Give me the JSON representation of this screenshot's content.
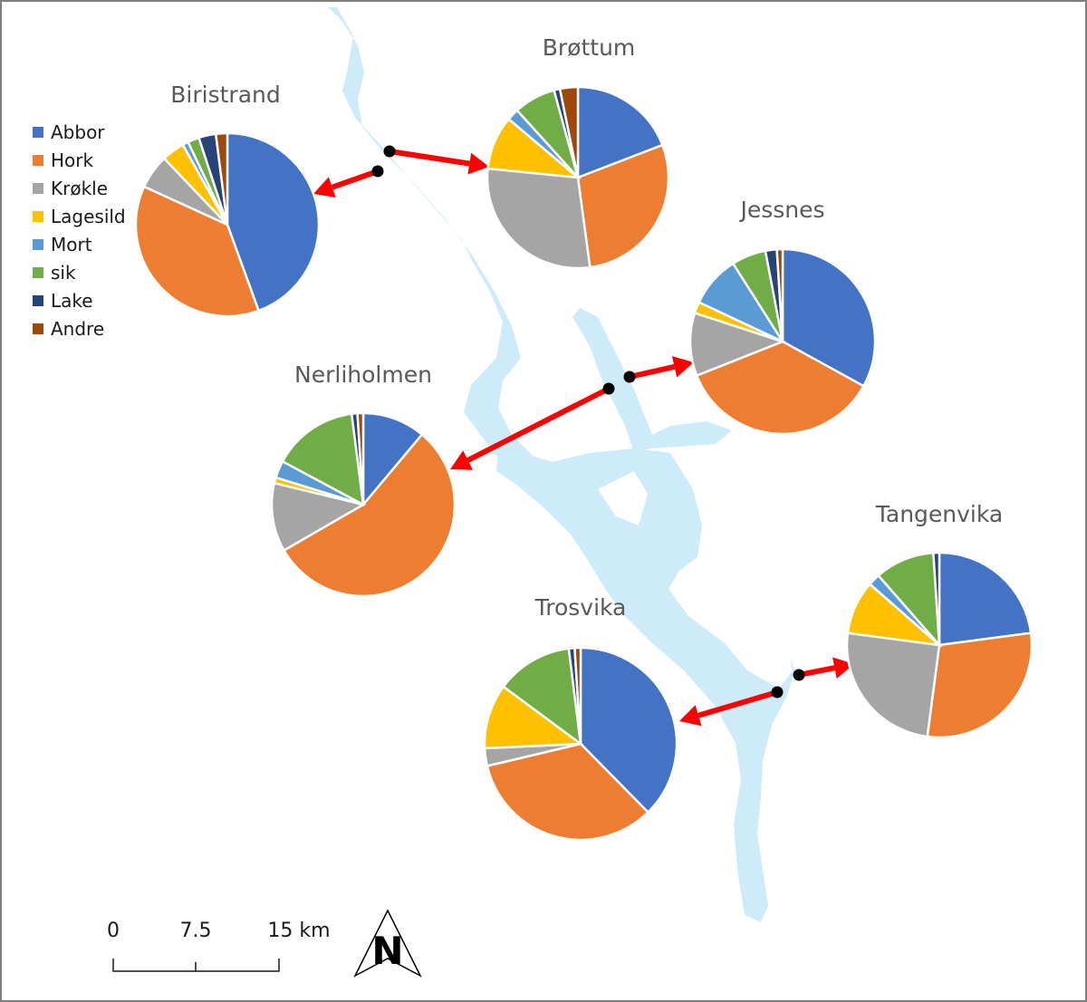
{
  "legend": {
    "items": [
      {
        "label": "Abbor",
        "color": "#4472C4"
      },
      {
        "label": "Hork",
        "color": "#ED7D31"
      },
      {
        "label": "Krøkle",
        "color": "#A5A5A5"
      },
      {
        "label": "Lagesild",
        "color": "#FFC000"
      },
      {
        "label": "Mort",
        "color": "#5B9BD5"
      },
      {
        "label": "sik",
        "color": "#70AD47"
      },
      {
        "label": "Lake",
        "color": "#264478"
      },
      {
        "label": "Andre",
        "color": "#9E480E"
      }
    ]
  },
  "sites": [
    {
      "name": "Biristrand",
      "values": [
        44,
        37,
        6,
        4,
        1,
        2,
        3,
        2
      ]
    },
    {
      "name": "Brøttum",
      "values": [
        18,
        27,
        27,
        9,
        2,
        7,
        1,
        3
      ]
    },
    {
      "name": "Jessnes",
      "values": [
        33,
        36,
        11,
        2,
        9,
        6,
        2,
        1
      ]
    },
    {
      "name": "Nerliholmen",
      "values": [
        11,
        55,
        12,
        1,
        3,
        15,
        1,
        1
      ]
    },
    {
      "name": "Tangenvika",
      "values": [
        22,
        28,
        24,
        9,
        2,
        10,
        1,
        0
      ]
    },
    {
      "name": "Trosvika",
      "values": [
        38,
        34,
        3,
        11,
        0,
        13,
        1,
        1
      ]
    }
  ],
  "scale_bar": {
    "labels": [
      "0",
      "7.5",
      "15 km"
    ]
  },
  "north_arrow": {
    "letter": "N",
    "icon": "north-arrow-icon"
  },
  "colors": {
    "lake": "#CDEBF9",
    "arrow": "#FF0000",
    "station": "#000000",
    "frame": "#7F7F7F"
  }
}
